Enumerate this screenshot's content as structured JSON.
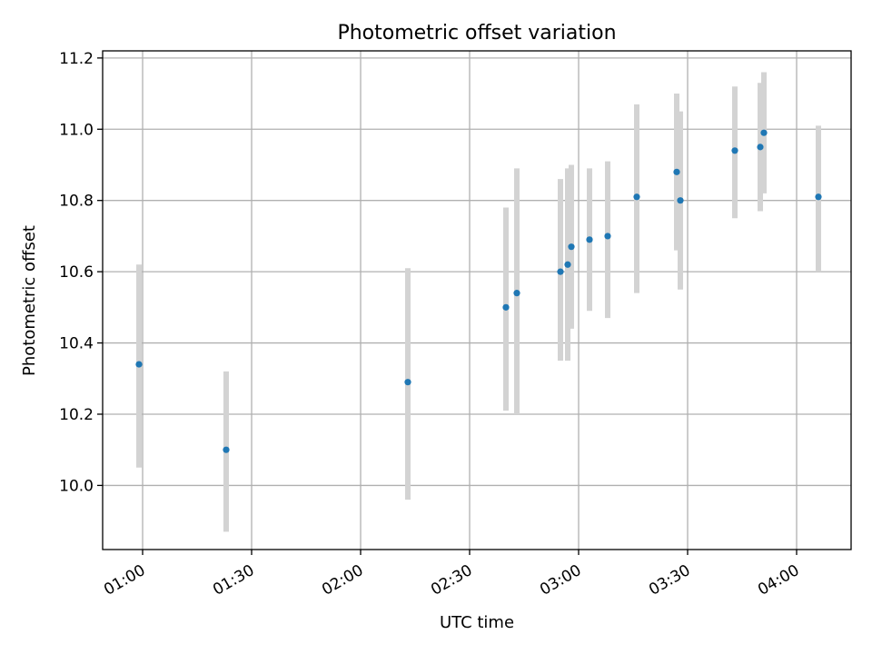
{
  "chart_data": {
    "type": "scatter",
    "title": "Photometric offset variation",
    "xlabel": "UTC time",
    "ylabel": "Photometric offset",
    "x_ticks": [
      "01:00",
      "01:30",
      "02:00",
      "02:30",
      "03:00",
      "03:30",
      "04:00"
    ],
    "y_ticks": [
      "10.0",
      "10.2",
      "10.4",
      "10.6",
      "10.8",
      "11.0",
      "11.2"
    ],
    "xlim": [
      "00:49",
      "04:15"
    ],
    "ylim": [
      9.82,
      11.22
    ],
    "grid": true,
    "colors": {
      "point": "#1f77b4",
      "errorbar": "#d3d3d3",
      "grid": "#b0b0b0"
    },
    "points": [
      {
        "x": "00:59",
        "y": 10.34,
        "yerr_low": 10.05,
        "yerr_high": 10.62
      },
      {
        "x": "01:23",
        "y": 10.1,
        "yerr_low": 9.87,
        "yerr_high": 10.32
      },
      {
        "x": "02:13",
        "y": 10.29,
        "yerr_low": 9.96,
        "yerr_high": 10.61
      },
      {
        "x": "02:40",
        "y": 10.5,
        "yerr_low": 10.21,
        "yerr_high": 10.78
      },
      {
        "x": "02:43",
        "y": 10.54,
        "yerr_low": 10.2,
        "yerr_high": 10.89
      },
      {
        "x": "02:55",
        "y": 10.6,
        "yerr_low": 10.35,
        "yerr_high": 10.86
      },
      {
        "x": "02:57",
        "y": 10.62,
        "yerr_low": 10.35,
        "yerr_high": 10.89
      },
      {
        "x": "02:58",
        "y": 10.67,
        "yerr_low": 10.44,
        "yerr_high": 10.9
      },
      {
        "x": "03:03",
        "y": 10.69,
        "yerr_low": 10.49,
        "yerr_high": 10.89
      },
      {
        "x": "03:08",
        "y": 10.7,
        "yerr_low": 10.47,
        "yerr_high": 10.91
      },
      {
        "x": "03:16",
        "y": 10.81,
        "yerr_low": 10.54,
        "yerr_high": 11.07
      },
      {
        "x": "03:27",
        "y": 10.88,
        "yerr_low": 10.66,
        "yerr_high": 11.1
      },
      {
        "x": "03:28",
        "y": 10.8,
        "yerr_low": 10.55,
        "yerr_high": 11.05
      },
      {
        "x": "03:43",
        "y": 10.94,
        "yerr_low": 10.75,
        "yerr_high": 11.12
      },
      {
        "x": "03:50",
        "y": 10.95,
        "yerr_low": 10.77,
        "yerr_high": 11.13
      },
      {
        "x": "03:51",
        "y": 10.99,
        "yerr_low": 10.82,
        "yerr_high": 11.16
      },
      {
        "x": "04:06",
        "y": 10.81,
        "yerr_low": 10.6,
        "yerr_high": 11.01
      }
    ]
  }
}
